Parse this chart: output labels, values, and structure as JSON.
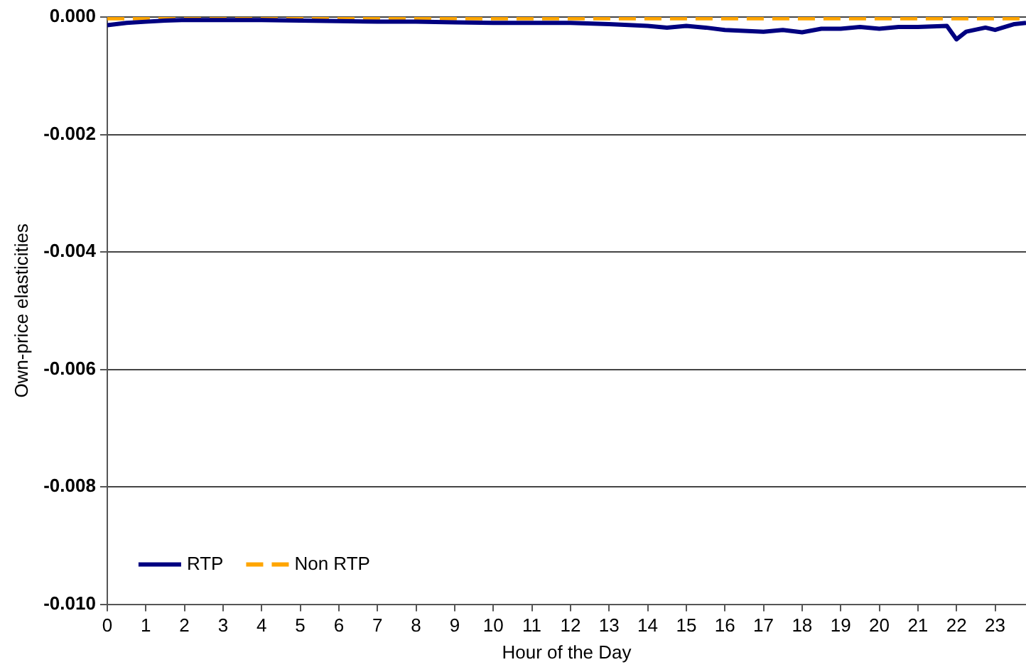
{
  "chart_data": {
    "type": "line",
    "xlabel": "Hour of the Day",
    "ylabel": "Own-price elasticities",
    "xlim": [
      0,
      23.8
    ],
    "xticks": [
      0,
      1,
      2,
      3,
      4,
      5,
      6,
      7,
      8,
      9,
      10,
      11,
      12,
      13,
      14,
      15,
      16,
      17,
      18,
      19,
      20,
      21,
      22,
      23
    ],
    "ylim": [
      -0.01,
      0
    ],
    "yticks": [
      {
        "value": -0.01,
        "label": "-0.010"
      },
      {
        "value": -0.008,
        "label": "-0.008"
      },
      {
        "value": -0.006,
        "label": "-0.006"
      },
      {
        "value": -0.004,
        "label": "-0.004"
      },
      {
        "value": -0.002,
        "label": "-0.002"
      },
      {
        "value": 0,
        "label": "0.000"
      }
    ],
    "grid": "y",
    "legend": "bottom left",
    "marker": "none",
    "series": [
      {
        "name": "RTP",
        "color": "#000080",
        "line_style": "solid",
        "x": [
          0,
          0.5,
          1,
          1.5,
          2,
          3,
          4,
          5,
          6,
          7,
          8,
          9,
          10,
          11,
          12,
          13,
          14,
          14.5,
          15,
          15.5,
          16,
          17,
          17.5,
          18,
          18.5,
          19,
          19.5,
          20,
          20.5,
          21,
          21.75,
          22,
          22.25,
          22.75,
          23,
          23.5,
          23.8
        ],
        "values": [
          -0.00014,
          -0.0001,
          -8e-05,
          -6e-05,
          -5e-05,
          -5e-05,
          -5e-05,
          -6e-05,
          -7e-05,
          -8e-05,
          -8e-05,
          -9e-05,
          -0.0001,
          -0.0001,
          -0.0001,
          -0.00012,
          -0.00015,
          -0.00018,
          -0.00015,
          -0.00018,
          -0.00022,
          -0.00025,
          -0.00022,
          -0.00026,
          -0.0002,
          -0.0002,
          -0.00017,
          -0.0002,
          -0.00017,
          -0.00017,
          -0.00015,
          -0.00038,
          -0.00025,
          -0.00018,
          -0.00022,
          -0.00012,
          -0.0001
        ]
      },
      {
        "name": "Non RTP",
        "color": "#ffa500",
        "line_style": "dashed",
        "x": [
          0,
          6,
          12,
          18,
          23.8
        ],
        "values": [
          -2e-05,
          -2e-05,
          -2e-05,
          -2e-05,
          -2e-05
        ]
      }
    ]
  }
}
